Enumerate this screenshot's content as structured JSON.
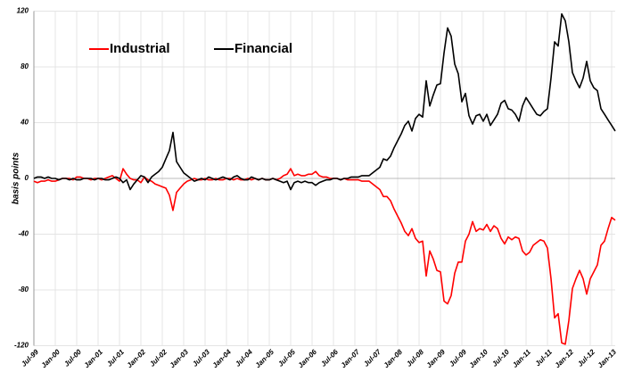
{
  "chart_data": {
    "type": "line",
    "y_label": "basis points",
    "ylim": [
      -120,
      120
    ],
    "yticks": [
      -120,
      -80,
      -40,
      0,
      40,
      80,
      120
    ],
    "grid": true,
    "legend": "upper left",
    "categories": [
      "Jul-99",
      null,
      null,
      null,
      null,
      null,
      "Jan-00",
      null,
      null,
      null,
      null,
      null,
      "Jul-00",
      null,
      null,
      null,
      null,
      null,
      "Jan-01",
      null,
      null,
      null,
      null,
      null,
      "Jul-01",
      null,
      null,
      null,
      null,
      null,
      "Jan-02",
      null,
      null,
      null,
      null,
      null,
      "Jul-02",
      null,
      null,
      null,
      null,
      null,
      "Jan-03",
      null,
      null,
      null,
      null,
      null,
      "Jul-03",
      null,
      null,
      null,
      null,
      null,
      "Jan-04",
      null,
      null,
      null,
      null,
      null,
      "Jul-04",
      null,
      null,
      null,
      null,
      null,
      "Jan-05",
      null,
      null,
      null,
      null,
      null,
      "Jul-05",
      null,
      null,
      null,
      null,
      null,
      "Jan-06",
      null,
      null,
      null,
      null,
      null,
      "Jul-06",
      null,
      null,
      null,
      null,
      null,
      "Jan-07",
      null,
      null,
      null,
      null,
      null,
      "Jul-07",
      null,
      null,
      null,
      null,
      null,
      "Jan-08",
      null,
      null,
      null,
      null,
      null,
      "Jul-08",
      null,
      null,
      null,
      null,
      null,
      "Jan-09",
      null,
      null,
      null,
      null,
      null,
      "Jul-09",
      null,
      null,
      null,
      null,
      null,
      "Jan-10",
      null,
      null,
      null,
      null,
      null,
      "Jul-10",
      null,
      null,
      null,
      null,
      null,
      "Jan-11",
      null,
      null,
      null,
      null,
      null,
      "Jul-11",
      null,
      null,
      null,
      null,
      null,
      "Jan-12",
      null,
      null,
      null,
      null,
      null,
      "Jul-12",
      null,
      null,
      null,
      null,
      null,
      "Jan-13",
      null
    ],
    "series": [
      {
        "name": "Industrial",
        "color": "#ff0000",
        "values": [
          -2,
          -3,
          -2,
          -2,
          -1,
          -2,
          -2,
          -1,
          0,
          0,
          0,
          -1,
          1,
          1,
          0,
          0,
          -1,
          0,
          0,
          -1,
          0,
          1,
          2,
          0,
          -2,
          7,
          3,
          0,
          -1,
          -1,
          -3,
          1,
          -1,
          -2,
          -4,
          -5,
          -6,
          -7,
          -12,
          -23,
          -10,
          -7,
          -4,
          -2,
          -1,
          0,
          -1,
          -1,
          0,
          -1,
          -1,
          0,
          -1,
          -1,
          0,
          0,
          -1,
          0,
          -1,
          -1,
          0,
          -1,
          0,
          -1,
          0,
          -1,
          -1,
          0,
          -1,
          0,
          2,
          3,
          7,
          2,
          3,
          2,
          2,
          3,
          3,
          5,
          2,
          1,
          1,
          0,
          0,
          0,
          -1,
          0,
          -1,
          -1,
          -1,
          -1,
          -2,
          -2,
          -2,
          -4,
          -6,
          -8,
          -13,
          -13,
          -16,
          -22,
          -27,
          -32,
          -38,
          -41,
          -36,
          -43,
          -46,
          -45,
          -70,
          -52,
          -58,
          -66,
          -67,
          -88,
          -90,
          -84,
          -68,
          -60,
          -60,
          -45,
          -40,
          -31,
          -38,
          -36,
          -37,
          -33,
          -38,
          -34,
          -36,
          -43,
          -47,
          -42,
          -44,
          -42,
          -43,
          -52,
          -55,
          -53,
          -48,
          -46,
          -44,
          -45,
          -50,
          -72,
          -100,
          -97,
          -118,
          -119,
          -102,
          -79,
          -72,
          -66,
          -72,
          -83,
          -72,
          -67,
          -62,
          -48,
          -45,
          -36,
          -28,
          -30
        ]
      },
      {
        "name": "Financial",
        "color": "#000000",
        "values": [
          0,
          1,
          1,
          0,
          1,
          0,
          0,
          -1,
          0,
          0,
          -1,
          0,
          -1,
          -1,
          0,
          0,
          0,
          -1,
          0,
          0,
          -1,
          -1,
          0,
          1,
          0,
          -3,
          -1,
          -8,
          -4,
          -1,
          2,
          1,
          -3,
          1,
          3,
          5,
          8,
          14,
          20,
          33,
          12,
          8,
          4,
          2,
          0,
          -2,
          -1,
          0,
          -1,
          1,
          0,
          -1,
          0,
          1,
          0,
          -1,
          1,
          2,
          0,
          -1,
          -1,
          1,
          0,
          -1,
          0,
          -1,
          -1,
          0,
          -1,
          -2,
          -3,
          -2,
          -8,
          -3,
          -2,
          -3,
          -2,
          -3,
          -3,
          -5,
          -3,
          -2,
          -1,
          -1,
          0,
          0,
          -1,
          0,
          0,
          1,
          1,
          1,
          2,
          2,
          2,
          4,
          6,
          8,
          14,
          13,
          16,
          22,
          27,
          32,
          38,
          41,
          34,
          43,
          46,
          44,
          70,
          52,
          60,
          67,
          68,
          90,
          108,
          102,
          82,
          75,
          55,
          61,
          45,
          39,
          45,
          46,
          41,
          46,
          38,
          42,
          46,
          54,
          56,
          50,
          49,
          46,
          41,
          52,
          58,
          54,
          50,
          46,
          45,
          48,
          50,
          72,
          98,
          95,
          118,
          113,
          98,
          76,
          70,
          65,
          72,
          84,
          70,
          65,
          63,
          50,
          46,
          42,
          38,
          34
        ]
      }
    ]
  }
}
